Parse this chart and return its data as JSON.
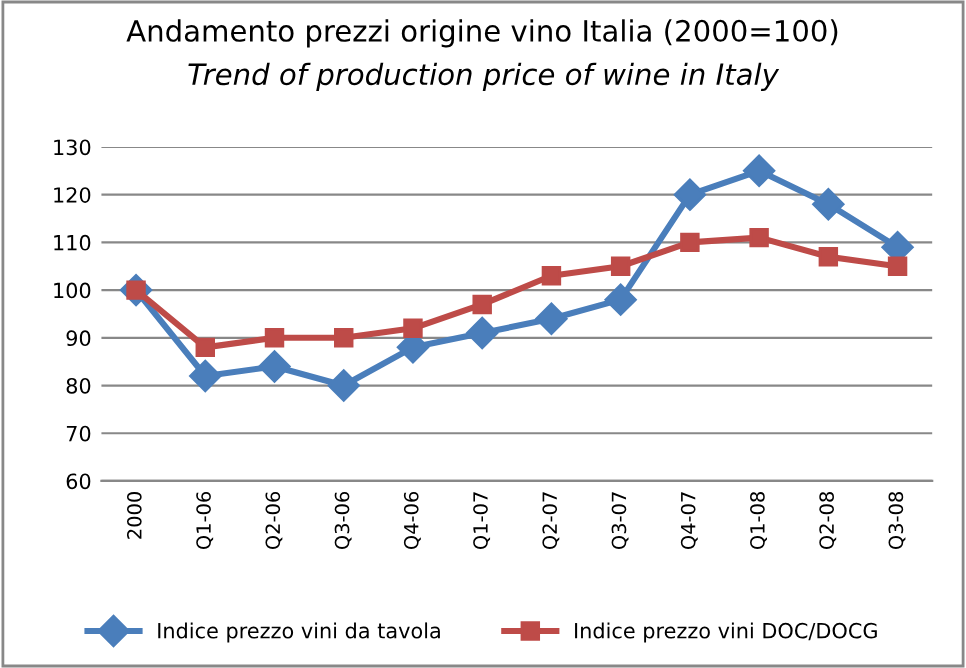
{
  "chart_data": {
    "type": "line",
    "title": "Andamento prezzi origine vino Italia (2000=100)",
    "subtitle": "Trend of production price of wine in Italy",
    "categories": [
      "2000",
      "Q1-06",
      "Q2-06",
      "Q3-06",
      "Q4-06",
      "Q1-07",
      "Q2-07",
      "Q3-07",
      "Q4-07",
      "Q1-08",
      "Q2-08",
      "Q3-08"
    ],
    "series": [
      {
        "name": "Indice prezzo vini da tavola",
        "color": "#4a7ebb",
        "marker": "diamond",
        "values": [
          100,
          82,
          84,
          80,
          88,
          91,
          94,
          98,
          120,
          125,
          118,
          109
        ]
      },
      {
        "name": "Indice prezzo vini DOC/DOCG",
        "color": "#be4b48",
        "marker": "square",
        "values": [
          100,
          88,
          90,
          90,
          92,
          97,
          103,
          105,
          110,
          111,
          107,
          105
        ]
      }
    ],
    "ylim": [
      60,
      130
    ],
    "yticks": [
      60,
      70,
      80,
      90,
      100,
      110,
      120,
      130
    ],
    "grid": "y",
    "legend": "bottom",
    "line_style": "solid"
  }
}
